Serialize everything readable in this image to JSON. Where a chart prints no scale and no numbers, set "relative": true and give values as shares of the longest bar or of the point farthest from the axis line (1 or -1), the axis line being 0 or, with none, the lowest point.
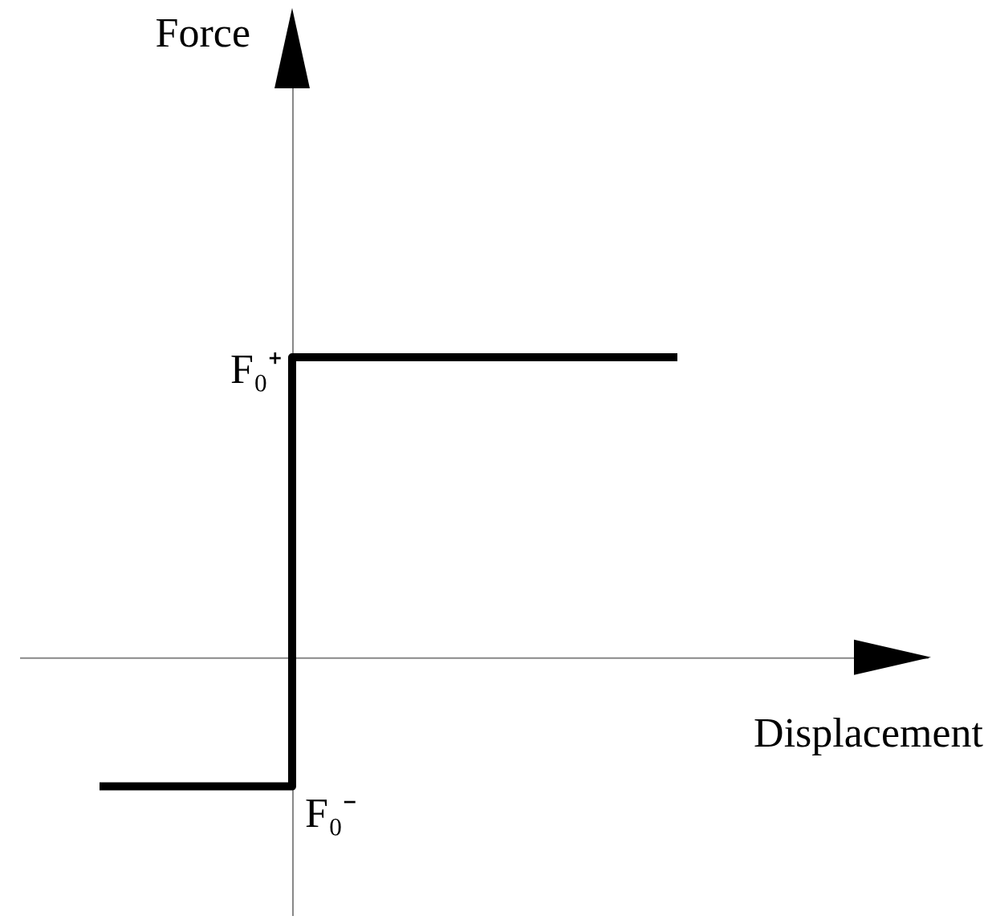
{
  "chart_data": {
    "type": "step",
    "relative": true,
    "categories": [
      null,
      null,
      null,
      null
    ],
    "values": [
      -0.43,
      1,
      1,
      1
    ],
    "color": "#000000",
    "marker": "none",
    "line_style": "solid",
    "grid": false,
    "xlabel": "Displacement",
    "annotations": [
      "Force",
      "F₀⁺",
      "F₀⁻"
    ]
  }
}
